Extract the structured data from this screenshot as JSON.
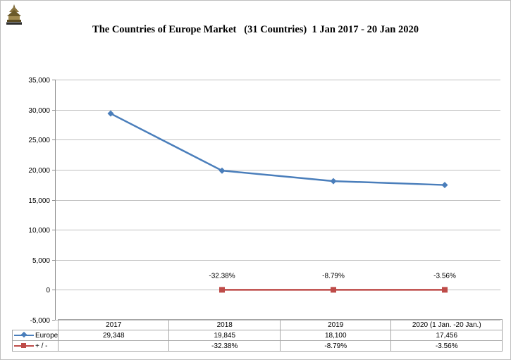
{
  "title": "The Countries of Europe Market   (31 Countries)  1 Jan 2017 - 20 Jan 2020",
  "logo_icon": "pagoda-emblem-logo",
  "colors": {
    "europe": "#4a7ebb",
    "change": "#be4b48",
    "grid": "#bfbfbf",
    "axis": "#8c8c8c"
  },
  "chart_data": {
    "type": "line",
    "categories": [
      "2017",
      "2018",
      "2019",
      "2020 (1 Jan. -20 Jan.)"
    ],
    "series": [
      {
        "name": "Europe",
        "values": [
          29348,
          19845,
          18100,
          17456
        ],
        "marker": "diamond",
        "table_labels": [
          "29,348",
          "19,845",
          "18,100",
          "17,456"
        ]
      },
      {
        "name": "+ / -",
        "values": [
          null,
          -32.38,
          -8.79,
          -3.56
        ],
        "marker": "square",
        "data_labels": [
          "",
          "-32.38%",
          "-8.79%",
          "-3.56%"
        ],
        "table_labels": [
          "",
          "-32.38%",
          "-8.79%",
          "-3.56%"
        ]
      }
    ],
    "ylim": [
      -5000,
      35000
    ],
    "yticks": [
      "35,000",
      "30,000",
      "25,000",
      "20,000",
      "15,000",
      "10,000",
      "5,000",
      "0",
      "-5,000"
    ],
    "ytick_values": [
      35000,
      30000,
      25000,
      20000,
      15000,
      10000,
      5000,
      0,
      -5000
    ],
    "grid": true,
    "legend": "data-table"
  }
}
